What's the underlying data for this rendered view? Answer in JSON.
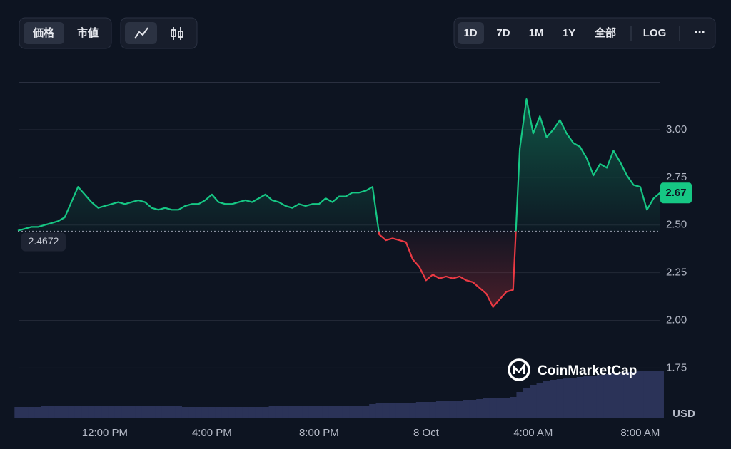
{
  "toolbar": {
    "metric_tabs": [
      "価格",
      "市値"
    ],
    "ranges": [
      "1D",
      "7D",
      "1M",
      "1Y",
      "全部"
    ],
    "log": "LOG",
    "more": "⋯"
  },
  "watermark": "CoinMarketCap",
  "chart_data": {
    "type": "line",
    "y_axis_label": "USD",
    "baseline": 2.4672,
    "up_color": "#16c784",
    "down_color": "#ea3943",
    "grid": true,
    "ylim": [
      1.49,
      3.25
    ],
    "yticks": [
      1.75,
      {
        "value": 2,
        "label": "2.00"
      },
      2.25,
      {
        "value": 2.5,
        "label": "2.50"
      },
      2.75,
      {
        "value": 3,
        "label": "3.00"
      }
    ],
    "categories": [
      null,
      null,
      null,
      null,
      null,
      null,
      null,
      null,
      null,
      null,
      null,
      null,
      null,
      "12:00 PM",
      null,
      null,
      null,
      null,
      null,
      null,
      null,
      null,
      null,
      null,
      null,
      null,
      null,
      null,
      null,
      "4:00 PM",
      null,
      null,
      null,
      null,
      null,
      null,
      null,
      null,
      null,
      null,
      null,
      null,
      null,
      null,
      null,
      "8:00 PM",
      null,
      null,
      null,
      null,
      null,
      null,
      null,
      null,
      null,
      null,
      null,
      null,
      null,
      null,
      null,
      "8 Oct",
      null,
      null,
      null,
      null,
      null,
      null,
      null,
      null,
      null,
      null,
      null,
      null,
      null,
      null,
      null,
      "4:00 AM",
      null,
      null,
      null,
      null,
      null,
      null,
      null,
      null,
      null,
      null,
      null,
      null,
      null,
      null,
      null,
      "8:00 AM",
      null,
      null,
      null
    ],
    "series": [
      {
        "values": [
          2.47,
          2.48,
          2.49,
          2.49,
          2.5,
          2.51,
          2.52,
          2.54,
          2.62,
          2.7,
          2.66,
          2.62,
          2.59,
          2.6,
          2.61,
          2.62,
          2.61,
          2.62,
          2.63,
          2.62,
          2.59,
          2.58,
          2.59,
          2.58,
          2.58,
          2.6,
          2.61,
          2.61,
          2.63,
          2.66,
          2.62,
          2.61,
          2.61,
          2.62,
          2.63,
          2.62,
          2.64,
          2.66,
          2.63,
          2.62,
          2.6,
          2.59,
          2.61,
          2.6,
          2.61,
          2.61,
          2.64,
          2.62,
          2.65,
          2.65,
          2.67,
          2.67,
          2.68,
          2.7,
          2.45,
          2.42,
          2.43,
          2.42,
          2.41,
          2.32,
          2.28,
          2.21,
          2.24,
          2.22,
          2.23,
          2.22,
          2.23,
          2.21,
          2.2,
          2.17,
          2.14,
          2.07,
          2.11,
          2.15,
          2.16,
          2.9,
          3.16,
          2.98,
          3.07,
          2.96,
          3.0,
          3.05,
          2.98,
          2.93,
          2.91,
          2.85,
          2.76,
          2.82,
          2.8,
          2.89,
          2.83,
          2.76,
          2.71,
          2.7,
          2.58,
          2.64,
          2.67
        ]
      }
    ],
    "volume": {
      "color": "#2b3358",
      "values": [
        15,
        15,
        15,
        15,
        16,
        16,
        16,
        16,
        17,
        17,
        17,
        17,
        17,
        17,
        17,
        17,
        16,
        16,
        16,
        16,
        16,
        16,
        16,
        16,
        16,
        15,
        15,
        15,
        15,
        15,
        15,
        15,
        15,
        15,
        15,
        15,
        15,
        15,
        16,
        16,
        16,
        16,
        16,
        16,
        16,
        16,
        16,
        16,
        16,
        16,
        16,
        17,
        17,
        19,
        20,
        20,
        21,
        21,
        21,
        21,
        22,
        22,
        22,
        23,
        23,
        24,
        24,
        25,
        25,
        26,
        27,
        27,
        28,
        28,
        29,
        36,
        42,
        46,
        49,
        51,
        53,
        54,
        55,
        56,
        57,
        58,
        59,
        60,
        61,
        62,
        63,
        64,
        64,
        65,
        65,
        66,
        66
      ]
    }
  }
}
